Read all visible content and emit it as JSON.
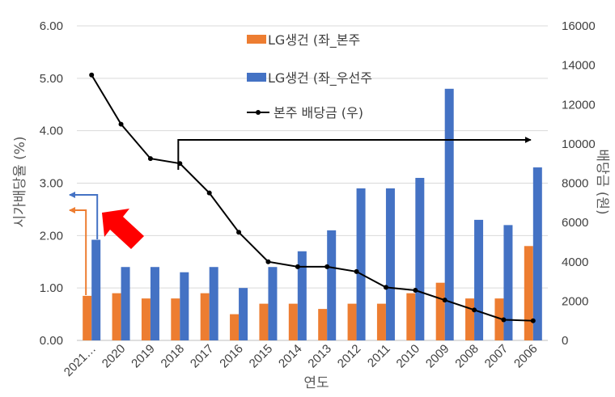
{
  "colors": {
    "bar_common": "#ED7D31",
    "bar_preferred": "#4472C4",
    "line": "#000000",
    "grid": "#D9D9D9",
    "arrow_red": "#FF0000",
    "arrow_orange": "#ED7D31",
    "arrow_blue": "#4472C4"
  },
  "chart_data": {
    "type": "bar",
    "categories": [
      "2021…",
      "2020",
      "2019",
      "2018",
      "2017",
      "2016",
      "2015",
      "2014",
      "2013",
      "2012",
      "2011",
      "2010",
      "2009",
      "2008",
      "2007",
      "2006"
    ],
    "series": [
      {
        "name": "LG생건 (좌_본주",
        "axis": "left",
        "kind": "bar",
        "values": [
          0.85,
          0.9,
          0.8,
          0.8,
          0.9,
          0.5,
          0.7,
          0.7,
          0.6,
          0.7,
          0.7,
          0.9,
          1.1,
          0.8,
          0.8,
          1.8
        ]
      },
      {
        "name": "LG생건 (좌_우선주",
        "axis": "left",
        "kind": "bar",
        "values": [
          1.92,
          1.4,
          1.4,
          1.3,
          1.4,
          1.0,
          1.4,
          1.7,
          2.1,
          2.9,
          2.9,
          3.1,
          4.8,
          2.3,
          2.2,
          3.3
        ]
      },
      {
        "name": "본주 배당금 (우)",
        "axis": "right",
        "kind": "line",
        "values": [
          13500,
          11000,
          9250,
          9000,
          7500,
          5500,
          4000,
          3750,
          3750,
          3500,
          2700,
          2550,
          2050,
          1550,
          1050,
          1000
        ]
      }
    ],
    "ylabel_left": "시가배당율 (%)",
    "ylabel_right": "배당금 (원)",
    "xlabel": "연도",
    "ylim_left": [
      0,
      6
    ],
    "yticks_left": [
      "0.00",
      "1.00",
      "2.00",
      "3.00",
      "4.00",
      "5.00",
      "6.00"
    ],
    "ylim_right": [
      0,
      16000
    ],
    "yticks_right": [
      "0",
      "2000",
      "4000",
      "6000",
      "8000",
      "10000",
      "12000",
      "14000",
      "16000"
    ],
    "grid": true,
    "legend_position": "top-center",
    "annotations": [
      "bracket arrow spanning 2018 to 2006",
      "red arrow pointing to 2021 bar",
      "orange arrow to left axis",
      "blue arrow to left axis"
    ]
  }
}
